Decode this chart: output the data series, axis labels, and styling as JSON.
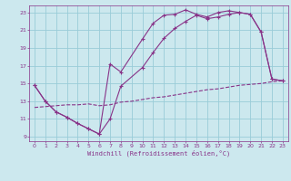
{
  "xlabel": "Windchill (Refroidissement éolien,°C)",
  "bg_color": "#cce8ee",
  "grid_color": "#99ccd8",
  "line_color": "#883388",
  "xlim": [
    -0.5,
    23.5
  ],
  "ylim": [
    8.5,
    23.8
  ],
  "xticks": [
    0,
    1,
    2,
    3,
    4,
    5,
    6,
    7,
    8,
    9,
    10,
    11,
    12,
    13,
    14,
    15,
    16,
    17,
    18,
    19,
    20,
    21,
    22,
    23
  ],
  "yticks": [
    9,
    11,
    13,
    15,
    17,
    19,
    21,
    23
  ],
  "line1_x": [
    0,
    1,
    2,
    3,
    4,
    5,
    6,
    7,
    8,
    10,
    11,
    12,
    13,
    14,
    15,
    16,
    17,
    18,
    19,
    20,
    21,
    22,
    23
  ],
  "line1_y": [
    14.8,
    13.0,
    11.8,
    11.2,
    10.5,
    9.9,
    9.3,
    17.2,
    16.3,
    20.0,
    21.8,
    22.7,
    22.8,
    23.3,
    22.8,
    22.5,
    23.0,
    23.2,
    23.0,
    22.8,
    20.8,
    15.5,
    15.3
  ],
  "line2_x": [
    0,
    1,
    2,
    3,
    4,
    5,
    6,
    7,
    8,
    10,
    11,
    12,
    13,
    14,
    15,
    16,
    17,
    18,
    19,
    20,
    21,
    22,
    23
  ],
  "line2_y": [
    14.8,
    13.0,
    11.8,
    11.2,
    10.5,
    9.9,
    9.3,
    11.0,
    14.7,
    16.8,
    18.5,
    20.1,
    21.2,
    22.0,
    22.7,
    22.3,
    22.5,
    22.8,
    23.0,
    22.8,
    20.8,
    15.5,
    15.3
  ],
  "line3_x": [
    0,
    1,
    2,
    3,
    4,
    5,
    6,
    7,
    8,
    9,
    10,
    11,
    12,
    13,
    14,
    15,
    16,
    17,
    18,
    19,
    20,
    21,
    22,
    23
  ],
  "line3_y": [
    12.3,
    12.4,
    12.5,
    12.6,
    12.6,
    12.7,
    12.5,
    12.6,
    12.9,
    13.0,
    13.2,
    13.4,
    13.5,
    13.7,
    13.9,
    14.1,
    14.3,
    14.4,
    14.6,
    14.8,
    14.9,
    15.0,
    15.2,
    15.3
  ]
}
